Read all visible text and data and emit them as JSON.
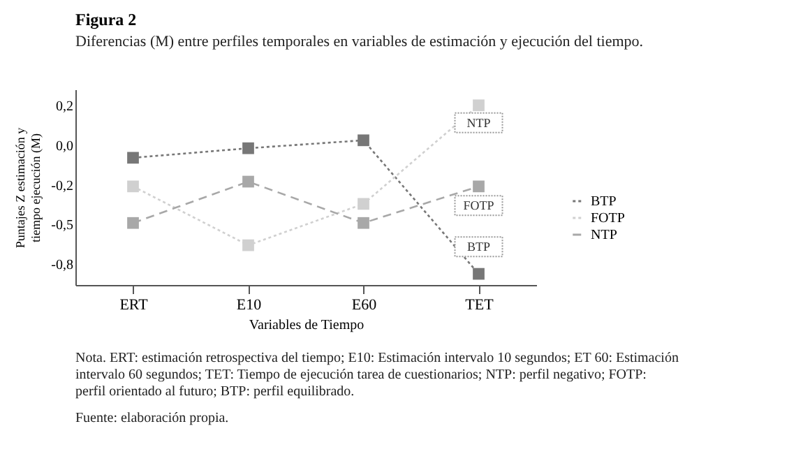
{
  "chart_data": {
    "type": "line",
    "title": "Figura 2",
    "subtitle": "Diferencias (M) entre perfiles temporales en variables de estimación y ejecución del tiempo.",
    "xlabel": "Variables de Tiempo",
    "ylabel": "Puntajes Z estimación y tiempo ejecución (M)",
    "categories": [
      "ERT",
      "E10",
      "E60",
      "TET"
    ],
    "series": [
      {
        "name": "BTP",
        "color": "#777777",
        "line_style": "dotted",
        "values": [
          -0.08,
          -0.02,
          0.03,
          -0.81
        ]
      },
      {
        "name": "FOTP",
        "color": "#d0d0d0",
        "line_style": "dotted",
        "values": [
          -0.26,
          -0.63,
          -0.37,
          0.25
        ]
      },
      {
        "name": "NTP",
        "color": "#a8a8a8",
        "line_style": "dashed",
        "values": [
          -0.49,
          -0.23,
          -0.49,
          -0.26
        ]
      }
    ],
    "marker": "square",
    "ylim": [
      -0.88,
      0.35
    ],
    "yticks": [
      {
        "value": 0.25,
        "label": "0,2"
      },
      {
        "value": 0,
        "label": "0,0"
      },
      {
        "value": -0.25,
        "label": "-0,2"
      },
      {
        "value": -0.5,
        "label": "-0,5"
      },
      {
        "value": -0.75,
        "label": "-0,8"
      }
    ],
    "grid": false,
    "legend": "right",
    "annotations": [
      {
        "text": "NTP",
        "x": "TET",
        "y": 0.14
      },
      {
        "text": "FOTP",
        "x": "TET",
        "y": -0.38
      },
      {
        "text": "BTP",
        "x": "TET",
        "y": -0.64
      },
      "Nota. ERT: estimación retrospectiva del tiempo; E10: Estimación intervalo 10 segundos; ET 60: Estimación intervalo 60 segundos; TET: Tiempo de ejecución tarea de cuestionarios; NTP: perfil negativo; FOTP: perfil orientado al futuro; BTP: perfil equilibrado.",
      "Fuente: elaboración propia."
    ]
  }
}
